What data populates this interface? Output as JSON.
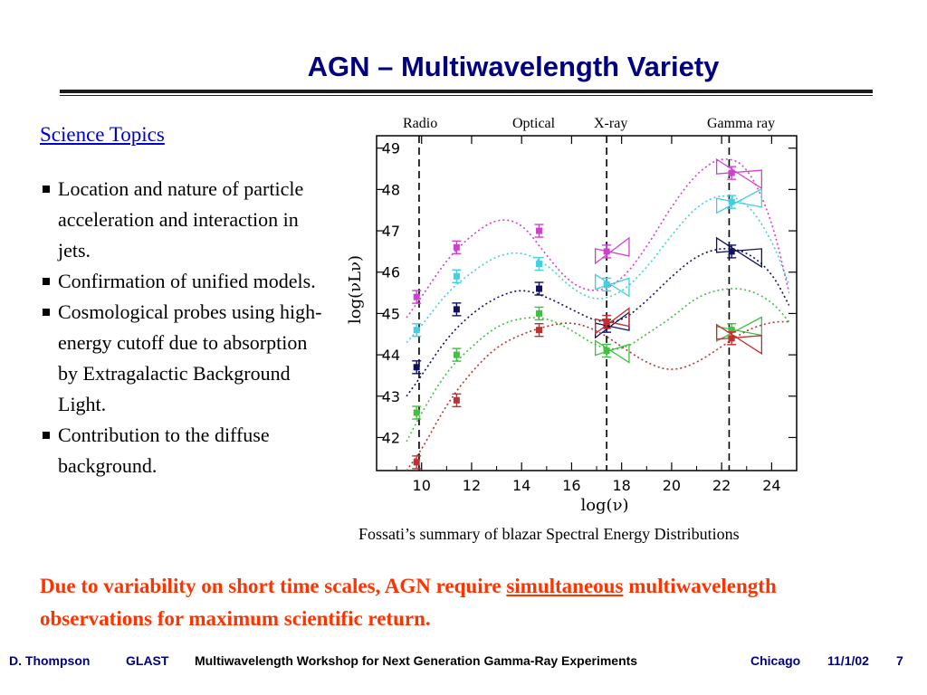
{
  "slide": {
    "title": "AGN – Multiwavelength Variety",
    "science_heading": "Science Topics",
    "bullets": [
      "Location and nature of particle acceleration and interaction in jets.",
      "Confirmation of unified models.",
      "Cosmological probes using high-energy cutoff due to absorption by Extragalactic Background Light.",
      "Contribution to the diffuse background."
    ],
    "caption": "Fossati’s summary of blazar Spectral Energy Distributions",
    "conclusion_part1": "Due to variability on short time scales, AGN require ",
    "conclusion_underlined": "simultaneous",
    "conclusion_part2": " multiwavelength observations for maximum scientific return."
  },
  "wavelength_labels": {
    "radio": "Radio",
    "optical": "Optical",
    "xray": "X-ray",
    "gamma": "Gamma ray"
  },
  "footer": {
    "author": "D. Thompson",
    "project": "GLAST",
    "event": "Multiwavelength Workshop for Next Generation Gamma-Ray Experiments",
    "city": "Chicago",
    "date": "11/1/02",
    "page": "7"
  },
  "chart_data": {
    "type": "line",
    "xlabel": "log(ν)",
    "ylabel": "log(νLν)",
    "xlim": [
      8.2,
      25.0
    ],
    "ylim": [
      41.2,
      49.3
    ],
    "xticks": [
      10,
      12,
      14,
      16,
      18,
      20,
      22,
      24
    ],
    "yticks": [
      42,
      43,
      44,
      45,
      46,
      47,
      48,
      49
    ],
    "vlines": [
      9.9,
      17.4,
      22.3
    ],
    "series": [
      {
        "color": "#d040d0",
        "curve": [
          [
            9.4,
            44.9
          ],
          [
            10,
            45.4
          ],
          [
            11,
            46.3
          ],
          [
            12,
            46.9
          ],
          [
            13,
            47.3
          ],
          [
            14,
            47.2
          ],
          [
            15,
            46.4
          ],
          [
            16,
            45.7
          ],
          [
            17,
            45.5
          ],
          [
            18,
            45.8
          ],
          [
            19,
            46.6
          ],
          [
            20,
            47.6
          ],
          [
            21,
            48.4
          ],
          [
            22,
            48.8
          ],
          [
            23,
            48.6
          ],
          [
            24,
            47.3
          ],
          [
            24.7,
            45.5
          ]
        ],
        "points": [
          [
            9.8,
            45.4
          ],
          [
            11.4,
            46.6
          ],
          [
            14.7,
            47.0
          ],
          [
            17.4,
            46.5
          ],
          [
            22.4,
            48.4
          ]
        ]
      },
      {
        "color": "#40d0e0",
        "curve": [
          [
            9.4,
            44.3
          ],
          [
            10,
            44.7
          ],
          [
            11,
            45.5
          ],
          [
            12,
            46.0
          ],
          [
            13,
            46.4
          ],
          [
            14,
            46.5
          ],
          [
            15,
            46.2
          ],
          [
            16,
            45.6
          ],
          [
            17,
            45.3
          ],
          [
            18,
            45.5
          ],
          [
            19,
            46.1
          ],
          [
            20,
            46.9
          ],
          [
            21,
            47.6
          ],
          [
            22,
            47.9
          ],
          [
            23,
            47.7
          ],
          [
            24,
            46.8
          ],
          [
            24.7,
            45.7
          ]
        ],
        "points": [
          [
            9.8,
            44.6
          ],
          [
            11.4,
            45.9
          ],
          [
            14.7,
            46.2
          ],
          [
            17.4,
            45.7
          ],
          [
            22.4,
            47.7
          ]
        ]
      },
      {
        "color": "#101060",
        "curve": [
          [
            9.4,
            43.0
          ],
          [
            10,
            43.5
          ],
          [
            11,
            44.4
          ],
          [
            12,
            45.0
          ],
          [
            13,
            45.4
          ],
          [
            14,
            45.6
          ],
          [
            15,
            45.4
          ],
          [
            16,
            45.1
          ],
          [
            17,
            44.8
          ],
          [
            18,
            44.8
          ],
          [
            19,
            45.3
          ],
          [
            20,
            45.9
          ],
          [
            21,
            46.4
          ],
          [
            22,
            46.6
          ],
          [
            23,
            46.5
          ],
          [
            24,
            46.0
          ],
          [
            24.7,
            45.2
          ]
        ],
        "points": [
          [
            9.8,
            43.7
          ],
          [
            11.4,
            45.1
          ],
          [
            14.7,
            45.6
          ],
          [
            17.4,
            44.7
          ],
          [
            22.4,
            46.5
          ]
        ]
      },
      {
        "color": "#40c040",
        "curve": [
          [
            9.4,
            41.9
          ],
          [
            10,
            42.6
          ],
          [
            11,
            43.6
          ],
          [
            12,
            44.2
          ],
          [
            13,
            44.7
          ],
          [
            14,
            44.9
          ],
          [
            15,
            44.9
          ],
          [
            16,
            44.6
          ],
          [
            17,
            44.2
          ],
          [
            18,
            44.1
          ],
          [
            19,
            44.5
          ],
          [
            20,
            44.9
          ],
          [
            21,
            45.4
          ],
          [
            22,
            45.6
          ],
          [
            23,
            45.6
          ],
          [
            24,
            45.3
          ],
          [
            24.7,
            44.8
          ]
        ],
        "points": [
          [
            9.8,
            42.6
          ],
          [
            11.4,
            44.0
          ],
          [
            14.7,
            45.0
          ],
          [
            17.4,
            44.1
          ],
          [
            22.4,
            44.6
          ]
        ]
      },
      {
        "color": "#c03030",
        "curve": [
          [
            9.4,
            40.9
          ],
          [
            10,
            41.7
          ],
          [
            11,
            42.8
          ],
          [
            12,
            43.6
          ],
          [
            13,
            44.2
          ],
          [
            14,
            44.5
          ],
          [
            15,
            44.7
          ],
          [
            16,
            44.8
          ],
          [
            17,
            44.6
          ],
          [
            18,
            44.2
          ],
          [
            19,
            43.8
          ],
          [
            20,
            43.6
          ],
          [
            21,
            43.8
          ],
          [
            22,
            44.2
          ],
          [
            23,
            44.6
          ],
          [
            24,
            44.8
          ],
          [
            24.7,
            44.8
          ]
        ],
        "points": [
          [
            9.8,
            41.4
          ],
          [
            11.4,
            42.9
          ],
          [
            14.7,
            44.6
          ],
          [
            17.4,
            44.8
          ],
          [
            22.4,
            44.4
          ]
        ]
      }
    ]
  }
}
